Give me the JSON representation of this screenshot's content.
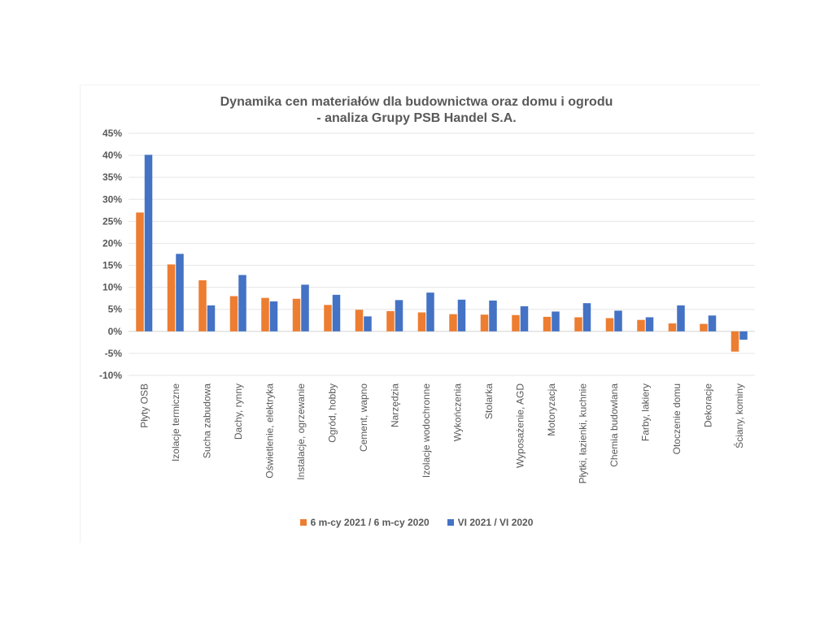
{
  "chart_data": {
    "type": "bar",
    "title_lines": [
      "Dynamika cen materiałów dla budownictwa oraz domu i ogrodu",
      "- analiza Grupy PSB Handel S.A."
    ],
    "xlabel": "",
    "ylabel": "",
    "ylim": [
      -10,
      45
    ],
    "ytick_values": [
      -10,
      -5,
      0,
      5,
      10,
      15,
      20,
      25,
      30,
      35,
      40,
      45
    ],
    "ytick_labels": [
      "-10%",
      "-5%",
      "0%",
      "5%",
      "10%",
      "15%",
      "20%",
      "25%",
      "30%",
      "35%",
      "40%",
      "45%"
    ],
    "grid": true,
    "legend_position": "bottom",
    "categories": [
      "Płyty OSB",
      "Izolacje termiczne",
      "Sucha zabudowa",
      "Dachy, rynny",
      "Oświetlenie, elektryka",
      "Instalacje, ogrzewanie",
      "Ogród, hobby",
      "Cement, wapno",
      "Narzędzia",
      "Izolacje wodochronne",
      "Wykończenia",
      "Stolarka",
      "Wyposażenie, AGD",
      "Motoryzacja",
      "Płytki, łazienki, kuchnie",
      "Chemia budowlana",
      "Farby, lakiery",
      "Otoczenie domu",
      "Dekoracje",
      "Ściany, kominy"
    ],
    "series": [
      {
        "name": "6 m-cy 2021 / 6 m-cy 2020",
        "color": "#ED7D31",
        "values": [
          27.0,
          15.2,
          11.6,
          8.0,
          7.6,
          7.4,
          6.0,
          4.9,
          4.6,
          4.3,
          3.9,
          3.8,
          3.7,
          3.3,
          3.2,
          3.0,
          2.6,
          1.8,
          1.7,
          -4.6
        ]
      },
      {
        "name": "VI 2021 / VI 2020",
        "color": "#4472C4",
        "values": [
          40.1,
          17.6,
          5.9,
          12.8,
          6.8,
          10.6,
          8.3,
          3.4,
          7.1,
          8.8,
          7.2,
          7.0,
          5.7,
          4.5,
          6.4,
          4.7,
          3.2,
          5.9,
          3.6,
          -1.9
        ]
      }
    ]
  }
}
